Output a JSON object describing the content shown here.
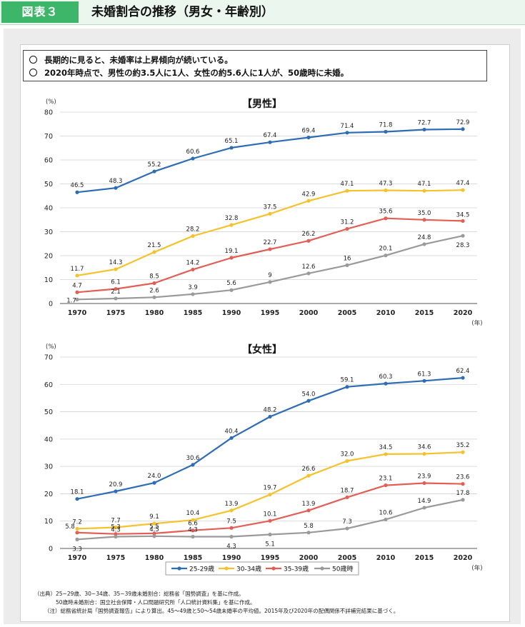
{
  "header": {
    "figure_label": "図表３",
    "title": "未婚割合の推移（男女・年齢別）"
  },
  "summary": [
    "長期的に見ると、未婚率は上昇傾向が続いている。",
    "2020年時点で、男性の約3.5人に1人、女性の約5.6人に1人が、50歳時に未婚。"
  ],
  "chart_data": [
    {
      "type": "line",
      "title": "【男性】",
      "ylabel": "(%)",
      "xlabel": "(年)",
      "ylim": [
        0,
        80
      ],
      "yticks": [
        0,
        10,
        20,
        30,
        40,
        50,
        60,
        70,
        80
      ],
      "x": [
        "1970",
        "1975",
        "1980",
        "1985",
        "1990",
        "1995",
        "2000",
        "2005",
        "2010",
        "2015",
        "2020"
      ],
      "grid": true,
      "series": [
        {
          "name": "25-29歳",
          "color": "#2e6db4",
          "values": [
            46.5,
            48.3,
            55.2,
            60.6,
            65.1,
            67.4,
            69.4,
            71.4,
            71.8,
            72.7,
            72.9
          ],
          "labels": [
            "46.5",
            "48.3",
            "55.2",
            "60.6",
            "65.1",
            "67.4",
            "69.4",
            "71.4",
            "71.8",
            "72.7",
            "72.9"
          ]
        },
        {
          "name": "30-34歳",
          "color": "#f5c22b",
          "values": [
            11.7,
            14.3,
            21.5,
            28.2,
            32.8,
            37.5,
            42.9,
            47.1,
            47.3,
            47.1,
            47.4
          ],
          "labels": [
            "11.7",
            "14.3",
            "21.5",
            "28.2",
            "32.8",
            "37.5",
            "42.9",
            "47.1",
            "47.3",
            "47.1",
            "47.4"
          ]
        },
        {
          "name": "35-39歳",
          "color": "#e35e55",
          "values": [
            4.7,
            6.1,
            8.5,
            14.2,
            19.1,
            22.7,
            26.2,
            31.2,
            35.6,
            35.0,
            34.5
          ],
          "labels": [
            "4.7",
            "6.1",
            "8.5",
            "14.2",
            "19.1",
            "22.7",
            "26.2",
            "31.2",
            "35.6",
            "35.0",
            "34.5"
          ]
        },
        {
          "name": "50歳時",
          "color": "#9a9a9a",
          "values": [
            1.7,
            2.1,
            2.6,
            3.9,
            5.6,
            9.0,
            12.6,
            16.0,
            20.1,
            24.8,
            28.3
          ],
          "labels": [
            "1.7",
            "2.1",
            "2.6",
            "3.9",
            "5.6",
            "9",
            "12.6",
            "16",
            "20.1",
            "24.8",
            "28.3"
          ]
        }
      ]
    },
    {
      "type": "line",
      "title": "【女性】",
      "ylabel": "(%)",
      "xlabel": "(年)",
      "ylim": [
        0,
        70
      ],
      "yticks": [
        0,
        10,
        20,
        30,
        40,
        50,
        60,
        70
      ],
      "x": [
        "1970",
        "1975",
        "1980",
        "1985",
        "1990",
        "1995",
        "2000",
        "2005",
        "2010",
        "2015",
        "2020"
      ],
      "grid": true,
      "legend": "bottom",
      "series": [
        {
          "name": "25-29歳",
          "color": "#2e6db4",
          "values": [
            18.1,
            20.9,
            24.0,
            30.6,
            40.4,
            48.2,
            54.0,
            59.1,
            60.3,
            61.3,
            62.4
          ],
          "labels": [
            "18.1",
            "20.9",
            "24.0",
            "30.6",
            "40.4",
            "48.2",
            "54.0",
            "59.1",
            "60.3",
            "61.3",
            "62.4"
          ]
        },
        {
          "name": "30-34歳",
          "color": "#f5c22b",
          "values": [
            7.2,
            7.7,
            9.1,
            10.4,
            13.9,
            19.7,
            26.6,
            32.0,
            34.5,
            34.6,
            35.2
          ],
          "labels": [
            "7.2",
            "7.7",
            "9.1",
            "10.4",
            "13.9",
            "19.7",
            "26.6",
            "32.0",
            "34.5",
            "34.6",
            "35.2"
          ]
        },
        {
          "name": "35-39歳",
          "color": "#e35e55",
          "values": [
            5.8,
            5.3,
            5.5,
            6.6,
            7.5,
            10.1,
            13.9,
            18.7,
            23.1,
            23.9,
            23.6
          ],
          "labels": [
            "5.8",
            "5.3",
            "5.5",
            "6.6",
            "7.5",
            "10.1",
            "13.9",
            "18.7",
            "23.1",
            "23.9",
            "23.6"
          ]
        },
        {
          "name": "50歳時",
          "color": "#9a9a9a",
          "values": [
            3.3,
            4.3,
            4.5,
            4.3,
            4.3,
            5.1,
            5.8,
            7.3,
            10.6,
            14.9,
            17.8
          ],
          "labels": [
            "3.3",
            "4.3",
            "4.5",
            "4.3",
            "4.3",
            "5.1",
            "5.8",
            "7.3",
            "10.6",
            "14.9",
            "17.8"
          ]
        }
      ]
    }
  ],
  "legend": {
    "items": [
      "25-29歳",
      "30-34歳",
      "35-39歳",
      "50歳時"
    ]
  },
  "source": [
    "（出典）25~29歳、30~34歳、35~39歳未婚割合：総務省「国勢調査」を基に作成。",
    "50歳時未婚割合：国立社会保障・人口問題研究所「人口統計資料集」を基に作成。",
    "（注）総務省統計局「国勢調査報告」により算出。45～49歳と50～54歳未婚率の平均値。2015年及び2020年の配偶関係不詳補完結果に基づく。"
  ]
}
